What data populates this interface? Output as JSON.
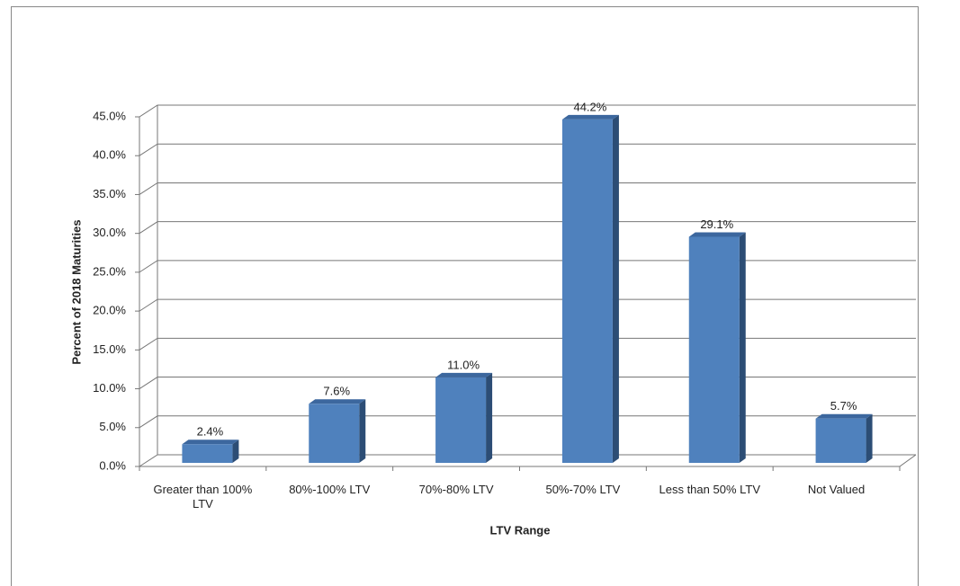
{
  "chart_data": {
    "type": "bar3d",
    "x_label": "LTV Range",
    "y_label": "Percent of 2018 Maturities",
    "categories": [
      "Greater than 100% LTV",
      "80%-100% LTV",
      "70%-80% LTV",
      "50%-70% LTV",
      "Less than 50% LTV",
      "Not Valued"
    ],
    "values": [
      2.4,
      7.6,
      11.0,
      44.2,
      29.1,
      5.7
    ],
    "value_labels": [
      "2.4%",
      "7.6%",
      "11.0%",
      "44.2%",
      "29.1%",
      "5.7%"
    ],
    "color": "#4f81bd",
    "ylim": [
      0,
      45
    ],
    "yticks": [
      {
        "value": 0,
        "label": "0.0%"
      },
      {
        "value": 5,
        "label": "5.0%"
      },
      {
        "value": 10,
        "label": "10.0%"
      },
      {
        "value": 15,
        "label": "15.0%"
      },
      {
        "value": 20,
        "label": "20.0%"
      },
      {
        "value": 25,
        "label": "25.0%"
      },
      {
        "value": 30,
        "label": "30.0%"
      },
      {
        "value": 35,
        "label": "35.0%"
      },
      {
        "value": 40,
        "label": "40.0%"
      },
      {
        "value": 45,
        "label": "45.0%"
      }
    ],
    "grid": true
  }
}
